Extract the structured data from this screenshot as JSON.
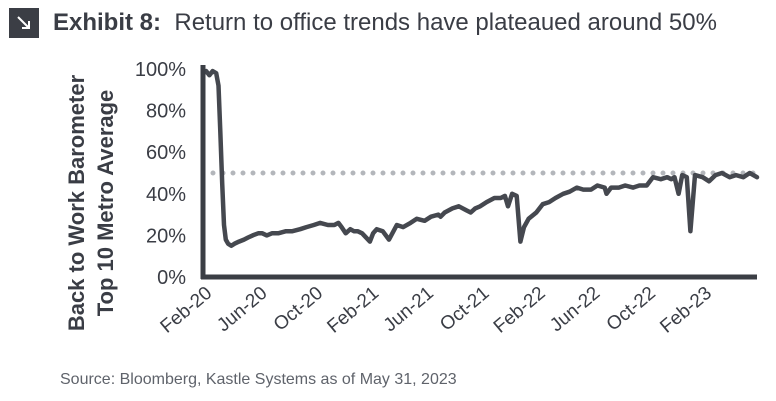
{
  "header": {
    "exhibit_label": "Exhibit 8:",
    "title": "Return to office trends have plateaued around 50%",
    "badge_icon": "arrow-down-right-icon"
  },
  "source": "Source: Bloomberg, Kastle Systems as of May 31, 2023",
  "chart_data": {
    "type": "line",
    "title": "Return to office trends have plateaued around 50%",
    "ylabel": [
      "Back to Work Barometer",
      "Top 10 Metro Average"
    ],
    "xlabel": "",
    "ylim": [
      0,
      100
    ],
    "yticks": [
      0,
      20,
      40,
      60,
      80,
      100
    ],
    "ytick_labels": [
      "0%",
      "20%",
      "40%",
      "60%",
      "80%",
      "100%"
    ],
    "xlim": [
      "2020-02-01",
      "2023-05-31"
    ],
    "xticks": [
      {
        "date": "2020-02-01",
        "label": "Feb-20"
      },
      {
        "date": "2020-06-01",
        "label": "Jun-20"
      },
      {
        "date": "2020-10-01",
        "label": "Oct-20"
      },
      {
        "date": "2021-02-01",
        "label": "Feb-21"
      },
      {
        "date": "2021-06-01",
        "label": "Jun-21"
      },
      {
        "date": "2021-10-01",
        "label": "Oct-21"
      },
      {
        "date": "2022-02-01",
        "label": "Feb-22"
      },
      {
        "date": "2022-06-01",
        "label": "Jun-22"
      },
      {
        "date": "2022-10-01",
        "label": "Oct-22"
      },
      {
        "date": "2023-02-01",
        "label": "Feb-23"
      }
    ],
    "reference_line": {
      "y": 50,
      "style": "dotted",
      "color": "#b3b6bb"
    },
    "grid": false,
    "colors": {
      "line": "#45484f",
      "axis": "#3b3e45",
      "text": "#3a3d45"
    },
    "series": [
      {
        "x": [
          "2020-02-01",
          "2020-02-08",
          "2020-02-15",
          "2020-02-22",
          "2020-03-01",
          "2020-03-06",
          "2020-03-10",
          "2020-03-14",
          "2020-03-18",
          "2020-03-22",
          "2020-03-27",
          "2020-04-03",
          "2020-04-10",
          "2020-04-20",
          "2020-05-01",
          "2020-05-10",
          "2020-05-20",
          "2020-06-01",
          "2020-06-10",
          "2020-06-20",
          "2020-07-01",
          "2020-07-15",
          "2020-08-01",
          "2020-08-15",
          "2020-09-01",
          "2020-09-15",
          "2020-10-01",
          "2020-10-15",
          "2020-11-01",
          "2020-11-15",
          "2020-11-24",
          "2020-12-01",
          "2020-12-10",
          "2020-12-20",
          "2020-12-28",
          "2021-01-05",
          "2021-01-15",
          "2021-02-01",
          "2021-02-08",
          "2021-02-12",
          "2021-02-16",
          "2021-03-01",
          "2021-03-15",
          "2021-04-01",
          "2021-04-15",
          "2021-05-01",
          "2021-05-15",
          "2021-06-01",
          "2021-06-15",
          "2021-07-01",
          "2021-07-06",
          "2021-07-15",
          "2021-08-01",
          "2021-08-15",
          "2021-09-01",
          "2021-09-10",
          "2021-09-20",
          "2021-10-01",
          "2021-10-15",
          "2021-11-01",
          "2021-11-15",
          "2021-11-24",
          "2021-12-01",
          "2021-12-10",
          "2021-12-20",
          "2021-12-28",
          "2022-01-05",
          "2022-01-15",
          "2022-02-01",
          "2022-02-15",
          "2022-03-01",
          "2022-03-15",
          "2022-04-01",
          "2022-04-15",
          "2022-05-01",
          "2022-05-15",
          "2022-06-01",
          "2022-06-15",
          "2022-07-01",
          "2022-07-05",
          "2022-07-15",
          "2022-08-01",
          "2022-08-15",
          "2022-09-01",
          "2022-09-15",
          "2022-10-01",
          "2022-10-15",
          "2022-11-01",
          "2022-11-15",
          "2022-11-24",
          "2022-12-01",
          "2022-12-10",
          "2022-12-18",
          "2022-12-28",
          "2023-01-05",
          "2023-01-15",
          "2023-02-01",
          "2023-02-15",
          "2023-03-01",
          "2023-03-15",
          "2023-04-01",
          "2023-04-15",
          "2023-05-01",
          "2023-05-15",
          "2023-05-31"
        ],
        "y": [
          98,
          99,
          97,
          99,
          98,
          92,
          70,
          45,
          25,
          18,
          16,
          15,
          16,
          17,
          18,
          19,
          20,
          21,
          21,
          20,
          21,
          21,
          22,
          22,
          23,
          24,
          25,
          26,
          25,
          25,
          26,
          24,
          21,
          23,
          22,
          22,
          21,
          17,
          21,
          22,
          23,
          22,
          18,
          25,
          24,
          26,
          28,
          27,
          29,
          30,
          29,
          31,
          33,
          34,
          32,
          31,
          33,
          34,
          36,
          38,
          38,
          39,
          34,
          40,
          39,
          17,
          24,
          28,
          31,
          35,
          36,
          38,
          40,
          41,
          43,
          42,
          42,
          44,
          43,
          40,
          43,
          43,
          44,
          43,
          44,
          44,
          48,
          47,
          48,
          47,
          48,
          40,
          49,
          48,
          22,
          49,
          48,
          46,
          49,
          50,
          48,
          49,
          48,
          50,
          48
        ]
      }
    ]
  }
}
